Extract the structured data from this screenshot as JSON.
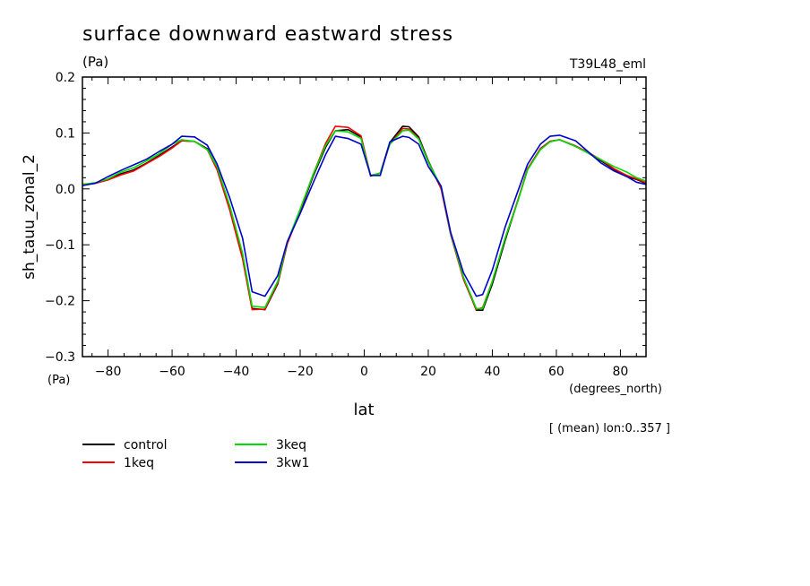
{
  "chart_data": {
    "type": "line",
    "title": "surface downward eastward stress",
    "units_label": "(Pa)",
    "run_label": "T39L48_eml",
    "ylabel": "sh_tauu_zonal_2",
    "y_unit_label": "(Pa)",
    "xlabel": "lat",
    "x_unit_label": "(degrees_north)",
    "note": "[ (mean) lon:0..357 ]",
    "xlim": [
      -88,
      88
    ],
    "ylim": [
      -0.3,
      0.2
    ],
    "x_ticks": [
      -80,
      -60,
      -40,
      -20,
      0,
      20,
      40,
      60,
      80
    ],
    "x_tick_labels": [
      "−80",
      "−60",
      "−40",
      "−20",
      "0",
      "20",
      "40",
      "60",
      "80"
    ],
    "y_ticks": [
      -0.3,
      -0.2,
      -0.1,
      0.0,
      0.1,
      0.2
    ],
    "y_tick_labels": [
      "−0.3",
      "−0.2",
      "−0.1",
      "0.0",
      "0.1",
      "0.2"
    ],
    "grid": false,
    "legend_position": "bottom-left",
    "x": [
      -88,
      -84,
      -80,
      -76,
      -72,
      -68,
      -64,
      -60,
      -57,
      -53,
      -49,
      -46,
      -42,
      -38,
      -35,
      -31,
      -27,
      -24,
      -20,
      -16,
      -12,
      -9,
      -5,
      -1,
      2,
      5,
      8,
      12,
      14,
      17,
      20,
      24,
      27,
      31,
      35,
      37,
      40,
      44,
      48,
      51,
      55,
      58,
      61,
      66,
      70,
      74,
      78,
      82,
      85,
      88
    ],
    "series": [
      {
        "name": "control",
        "color": "#000000",
        "values": [
          0.008,
          0.01,
          0.017,
          0.027,
          0.034,
          0.046,
          0.06,
          0.075,
          0.086,
          0.085,
          0.072,
          0.038,
          -0.032,
          -0.118,
          -0.214,
          -0.216,
          -0.17,
          -0.097,
          -0.04,
          0.022,
          0.075,
          0.104,
          0.106,
          0.093,
          0.023,
          0.028,
          0.083,
          0.112,
          0.111,
          0.093,
          0.05,
          0.002,
          -0.08,
          -0.16,
          -0.217,
          -0.217,
          -0.17,
          -0.092,
          -0.021,
          0.035,
          0.072,
          0.085,
          0.088,
          0.076,
          0.064,
          0.05,
          0.035,
          0.022,
          0.017,
          0.01
        ]
      },
      {
        "name": "1keq",
        "color": "#ff0000",
        "values": [
          0.008,
          0.01,
          0.016,
          0.025,
          0.032,
          0.045,
          0.058,
          0.073,
          0.086,
          0.085,
          0.07,
          0.035,
          -0.038,
          -0.125,
          -0.216,
          -0.215,
          -0.168,
          -0.098,
          -0.038,
          0.025,
          0.082,
          0.112,
          0.11,
          0.095,
          0.024,
          0.028,
          0.08,
          0.108,
          0.107,
          0.09,
          0.048,
          0.0,
          -0.082,
          -0.162,
          -0.216,
          -0.212,
          -0.165,
          -0.088,
          -0.02,
          0.036,
          0.072,
          0.085,
          0.088,
          0.077,
          0.065,
          0.052,
          0.036,
          0.024,
          0.018,
          0.011
        ]
      },
      {
        "name": "3keq",
        "color": "#00dd00",
        "values": [
          0.008,
          0.011,
          0.018,
          0.03,
          0.038,
          0.05,
          0.063,
          0.08,
          0.088,
          0.085,
          0.07,
          0.04,
          -0.03,
          -0.115,
          -0.21,
          -0.212,
          -0.165,
          -0.095,
          -0.036,
          0.025,
          0.078,
          0.104,
          0.102,
          0.09,
          0.024,
          0.028,
          0.08,
          0.104,
          0.105,
          0.089,
          0.048,
          0.004,
          -0.08,
          -0.158,
          -0.214,
          -0.214,
          -0.165,
          -0.088,
          -0.022,
          0.034,
          0.07,
          0.084,
          0.088,
          0.076,
          0.064,
          0.052,
          0.04,
          0.03,
          0.02,
          0.014
        ]
      },
      {
        "name": "3kw1",
        "color": "#0000cc",
        "values": [
          0.006,
          0.01,
          0.022,
          0.033,
          0.043,
          0.053,
          0.067,
          0.08,
          0.094,
          0.093,
          0.078,
          0.045,
          -0.016,
          -0.088,
          -0.184,
          -0.192,
          -0.155,
          -0.094,
          -0.044,
          0.01,
          0.062,
          0.094,
          0.09,
          0.08,
          0.024,
          0.024,
          0.084,
          0.094,
          0.092,
          0.08,
          0.04,
          0.005,
          -0.078,
          -0.15,
          -0.192,
          -0.189,
          -0.145,
          -0.068,
          -0.004,
          0.044,
          0.08,
          0.094,
          0.096,
          0.086,
          0.066,
          0.046,
          0.032,
          0.022,
          0.012,
          0.008
        ]
      }
    ]
  }
}
